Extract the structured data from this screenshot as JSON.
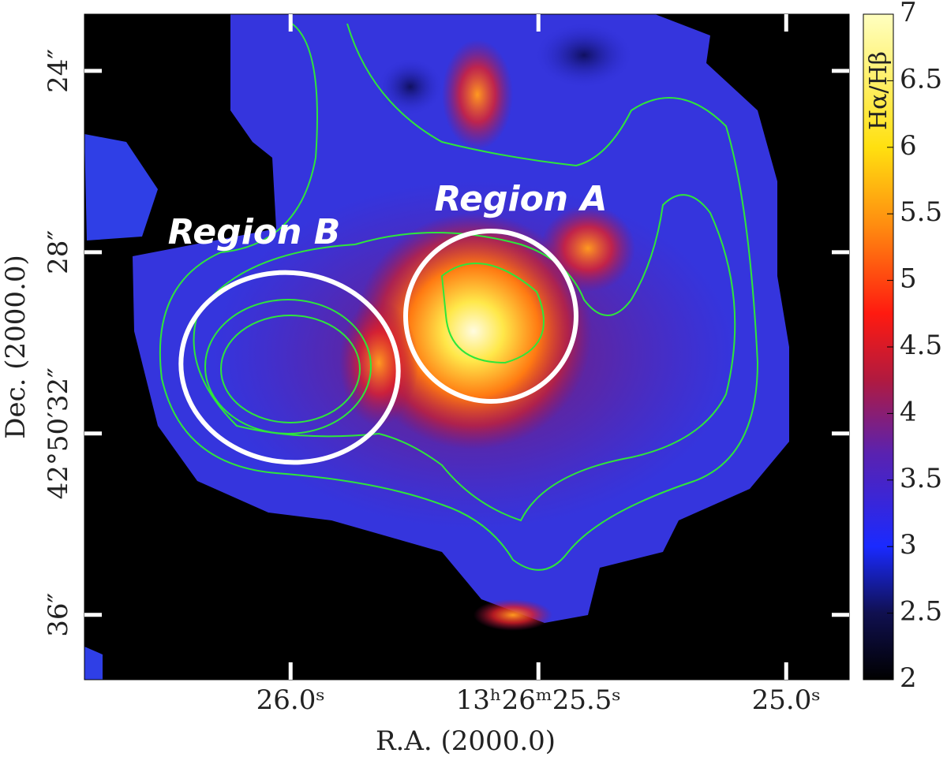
{
  "chart_data": {
    "type": "image",
    "xlabel": "R.A. (2000.0)",
    "ylabel": "Dec. (2000.0)",
    "xlim": [
      26.416,
      24.873
    ],
    "xticks": [
      {
        "value": 26.0,
        "label": "26.0ˢ"
      },
      {
        "value": 25.5,
        "label": "13ʰ26ᵐ25.5ˢ"
      },
      {
        "value": 25.0,
        "label": "25.0ˢ"
      }
    ],
    "ylim": [
      22.75,
      37.43
    ],
    "yticks": [
      {
        "value": 24,
        "label": "24″"
      },
      {
        "value": 28,
        "label": "28″"
      },
      {
        "value": 32,
        "label": "42°50′32″"
      },
      {
        "value": 36,
        "label": "36″"
      }
    ],
    "colorbar": {
      "label": "Hα/Hβ",
      "lim": [
        2,
        7
      ],
      "ticks": [
        2,
        2.5,
        3,
        3.5,
        4,
        4.5,
        5,
        5.5,
        6,
        6.5,
        7
      ]
    },
    "annotations": [
      "Region A",
      "Region B"
    ]
  }
}
